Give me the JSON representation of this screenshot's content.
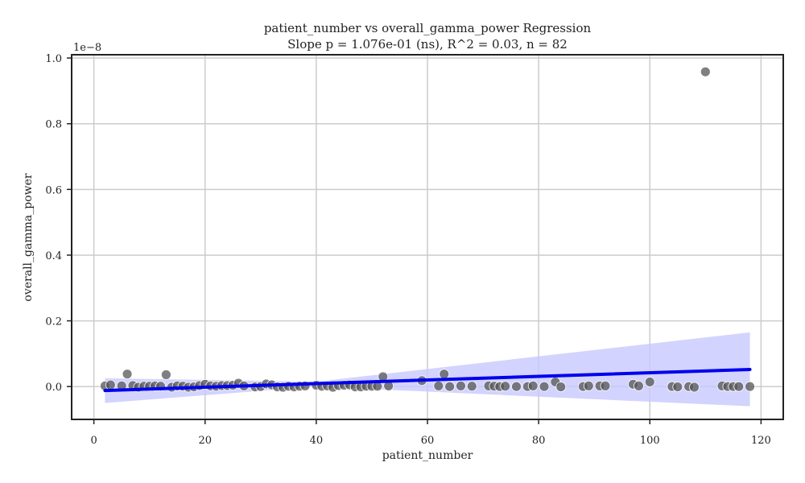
{
  "chart_data": {
    "type": "scatter",
    "title": "patient_number vs overall_gamma_power Regression",
    "subtitle": "Slope p = 1.076e-01 (ns), R^2 = 0.03, n = 82",
    "xlabel": "patient_number",
    "ylabel": "overall_gamma_power",
    "y_offset_label": "1e−8",
    "xlim": [
      -4,
      124
    ],
    "ylim": [
      -0.1,
      1.01
    ],
    "xticks": [
      0,
      20,
      40,
      60,
      80,
      100,
      120
    ],
    "yticks": [
      0.0,
      0.2,
      0.4,
      0.6,
      0.8,
      1.0
    ],
    "xtick_labels": [
      "0",
      "20",
      "40",
      "60",
      "80",
      "100",
      "120"
    ],
    "ytick_labels": [
      "0.0",
      "0.2",
      "0.4",
      "0.6",
      "0.8",
      "1.0"
    ],
    "grid": true,
    "colors": {
      "points": "#555555",
      "regression_line": "#0000ee",
      "confidence_band": "#c8c8ff",
      "grid": "#cccccc",
      "axes": "#222222"
    },
    "points": [
      {
        "x": 2,
        "y": 0.002
      },
      {
        "x": 3,
        "y": 0.005
      },
      {
        "x": 5,
        "y": 0.002
      },
      {
        "x": 6,
        "y": 0.038
      },
      {
        "x": 7,
        "y": 0.003
      },
      {
        "x": 8,
        "y": -0.002
      },
      {
        "x": 9,
        "y": 0.001
      },
      {
        "x": 10,
        "y": 0.001
      },
      {
        "x": 11,
        "y": 0.002
      },
      {
        "x": 12,
        "y": 0.001
      },
      {
        "x": 13,
        "y": 0.036
      },
      {
        "x": 14,
        "y": -0.002
      },
      {
        "x": 15,
        "y": 0.002
      },
      {
        "x": 16,
        "y": 0.001
      },
      {
        "x": 17,
        "y": -0.002
      },
      {
        "x": 18,
        "y": -0.001
      },
      {
        "x": 19,
        "y": 0.003
      },
      {
        "x": 20,
        "y": 0.007
      },
      {
        "x": 21,
        "y": 0.002
      },
      {
        "x": 22,
        "y": 0.001
      },
      {
        "x": 23,
        "y": 0.003
      },
      {
        "x": 24,
        "y": 0.003
      },
      {
        "x": 25,
        "y": 0.004
      },
      {
        "x": 26,
        "y": 0.01
      },
      {
        "x": 27,
        "y": 0.002
      },
      {
        "x": 29,
        "y": -0.001
      },
      {
        "x": 30,
        "y": 0.0
      },
      {
        "x": 31,
        "y": 0.008
      },
      {
        "x": 32,
        "y": 0.005
      },
      {
        "x": 33,
        "y": -0.001
      },
      {
        "x": 34,
        "y": -0.002
      },
      {
        "x": 35,
        "y": 0.001
      },
      {
        "x": 36,
        "y": -0.001
      },
      {
        "x": 37,
        "y": 0.001
      },
      {
        "x": 38,
        "y": 0.002
      },
      {
        "x": 40,
        "y": 0.004
      },
      {
        "x": 41,
        "y": 0.001
      },
      {
        "x": 42,
        "y": 0.002
      },
      {
        "x": 43,
        "y": -0.002
      },
      {
        "x": 44,
        "y": 0.003
      },
      {
        "x": 45,
        "y": 0.004
      },
      {
        "x": 46,
        "y": 0.005
      },
      {
        "x": 47,
        "y": -0.001
      },
      {
        "x": 48,
        "y": -0.001
      },
      {
        "x": 49,
        "y": 0.001
      },
      {
        "x": 50,
        "y": 0.001
      },
      {
        "x": 51,
        "y": 0.001
      },
      {
        "x": 52,
        "y": 0.03
      },
      {
        "x": 53,
        "y": 0.002
      },
      {
        "x": 59,
        "y": 0.018
      },
      {
        "x": 62,
        "y": 0.002
      },
      {
        "x": 63,
        "y": 0.038
      },
      {
        "x": 64,
        "y": 0.0
      },
      {
        "x": 66,
        "y": 0.002
      },
      {
        "x": 68,
        "y": 0.001
      },
      {
        "x": 71,
        "y": 0.002
      },
      {
        "x": 72,
        "y": 0.001
      },
      {
        "x": 73,
        "y": 0.0
      },
      {
        "x": 74,
        "y": 0.001
      },
      {
        "x": 76,
        "y": 0.0
      },
      {
        "x": 78,
        "y": 0.0
      },
      {
        "x": 79,
        "y": 0.002
      },
      {
        "x": 81,
        "y": 0.0
      },
      {
        "x": 83,
        "y": 0.014
      },
      {
        "x": 84,
        "y": -0.001
      },
      {
        "x": 88,
        "y": 0.0
      },
      {
        "x": 89,
        "y": 0.002
      },
      {
        "x": 91,
        "y": 0.002
      },
      {
        "x": 92,
        "y": 0.002
      },
      {
        "x": 97,
        "y": 0.007
      },
      {
        "x": 98,
        "y": 0.002
      },
      {
        "x": 100,
        "y": 0.014
      },
      {
        "x": 104,
        "y": 0.0
      },
      {
        "x": 105,
        "y": -0.001
      },
      {
        "x": 107,
        "y": 0.0
      },
      {
        "x": 108,
        "y": -0.002
      },
      {
        "x": 110,
        "y": 0.958
      },
      {
        "x": 113,
        "y": 0.002
      },
      {
        "x": 114,
        "y": 0.0
      },
      {
        "x": 115,
        "y": 0.0
      },
      {
        "x": 116,
        "y": 0.0
      },
      {
        "x": 118,
        "y": 0.0
      }
    ],
    "regression_line": {
      "x": [
        2,
        118
      ],
      "y": [
        -0.012,
        0.052
      ]
    },
    "confidence_band": {
      "x": [
        2,
        40,
        118
      ],
      "lower": [
        -0.05,
        0.0,
        -0.06
      ],
      "upper": [
        0.025,
        0.015,
        0.165
      ]
    }
  }
}
